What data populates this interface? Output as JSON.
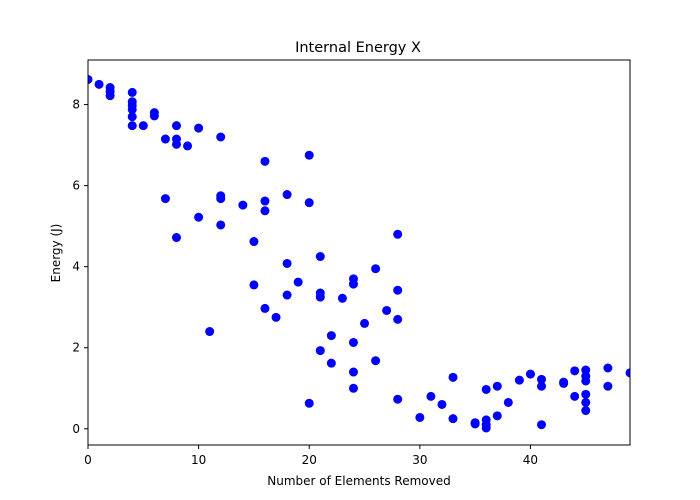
{
  "chart_data": {
    "type": "scatter",
    "title": "Internal Energy X",
    "xlabel": "Number of Elements Removed",
    "ylabel": "Energy (J)",
    "xlim": [
      0,
      49
    ],
    "ylim": [
      -0.4,
      9.1
    ],
    "x_ticks": [
      0,
      10,
      20,
      30,
      40
    ],
    "y_ticks": [
      0,
      2,
      4,
      6,
      8
    ],
    "grid": false,
    "marker_color": "#0000ff",
    "points": [
      [
        0,
        8.62
      ],
      [
        1,
        8.5
      ],
      [
        2,
        8.42
      ],
      [
        2,
        8.32
      ],
      [
        2,
        8.22
      ],
      [
        4,
        8.3
      ],
      [
        4,
        8.07
      ],
      [
        4,
        7.98
      ],
      [
        4,
        7.88
      ],
      [
        4,
        7.7
      ],
      [
        4,
        7.48
      ],
      [
        5,
        7.48
      ],
      [
        6,
        7.8
      ],
      [
        6,
        7.72
      ],
      [
        7,
        7.15
      ],
      [
        8,
        7.48
      ],
      [
        8,
        7.15
      ],
      [
        8,
        7.02
      ],
      [
        9,
        6.98
      ],
      [
        10,
        7.42
      ],
      [
        12,
        7.2
      ],
      [
        7,
        5.68
      ],
      [
        8,
        4.72
      ],
      [
        10,
        5.22
      ],
      [
        11,
        2.4
      ],
      [
        12,
        5.75
      ],
      [
        12,
        5.68
      ],
      [
        12,
        5.03
      ],
      [
        14,
        5.52
      ],
      [
        15,
        4.62
      ],
      [
        15,
        3.55
      ],
      [
        16,
        6.6
      ],
      [
        16,
        5.62
      ],
      [
        16,
        5.38
      ],
      [
        16,
        2.97
      ],
      [
        17,
        2.75
      ],
      [
        18,
        5.78
      ],
      [
        18,
        4.08
      ],
      [
        18,
        3.3
      ],
      [
        19,
        3.62
      ],
      [
        20,
        6.75
      ],
      [
        20,
        5.58
      ],
      [
        20,
        0.63
      ],
      [
        21,
        4.25
      ],
      [
        21,
        3.35
      ],
      [
        21,
        3.25
      ],
      [
        21,
        1.93
      ],
      [
        22,
        2.3
      ],
      [
        22,
        1.62
      ],
      [
        23,
        3.22
      ],
      [
        24,
        3.7
      ],
      [
        24,
        3.57
      ],
      [
        24,
        2.13
      ],
      [
        24,
        1.4
      ],
      [
        24,
        1.0
      ],
      [
        25,
        2.6
      ],
      [
        26,
        3.95
      ],
      [
        26,
        1.68
      ],
      [
        27,
        2.92
      ],
      [
        28,
        4.8
      ],
      [
        28,
        3.42
      ],
      [
        28,
        2.7
      ],
      [
        28,
        0.73
      ],
      [
        30,
        0.28
      ],
      [
        31,
        0.8
      ],
      [
        32,
        0.6
      ],
      [
        33,
        1.27
      ],
      [
        33,
        0.25
      ],
      [
        35,
        0.15
      ],
      [
        35,
        0.12
      ],
      [
        36,
        0.97
      ],
      [
        36,
        0.22
      ],
      [
        36,
        0.1
      ],
      [
        36,
        0.02
      ],
      [
        37,
        1.05
      ],
      [
        37,
        0.32
      ],
      [
        38,
        0.65
      ],
      [
        39,
        1.2
      ],
      [
        40,
        1.35
      ],
      [
        41,
        1.22
      ],
      [
        41,
        1.05
      ],
      [
        41,
        0.1
      ],
      [
        43,
        1.15
      ],
      [
        43,
        1.12
      ],
      [
        44,
        1.43
      ],
      [
        44,
        0.8
      ],
      [
        45,
        1.45
      ],
      [
        45,
        1.3
      ],
      [
        45,
        1.18
      ],
      [
        45,
        0.85
      ],
      [
        45,
        0.65
      ],
      [
        45,
        0.45
      ],
      [
        47,
        1.5
      ],
      [
        47,
        1.05
      ],
      [
        49,
        1.38
      ]
    ]
  }
}
